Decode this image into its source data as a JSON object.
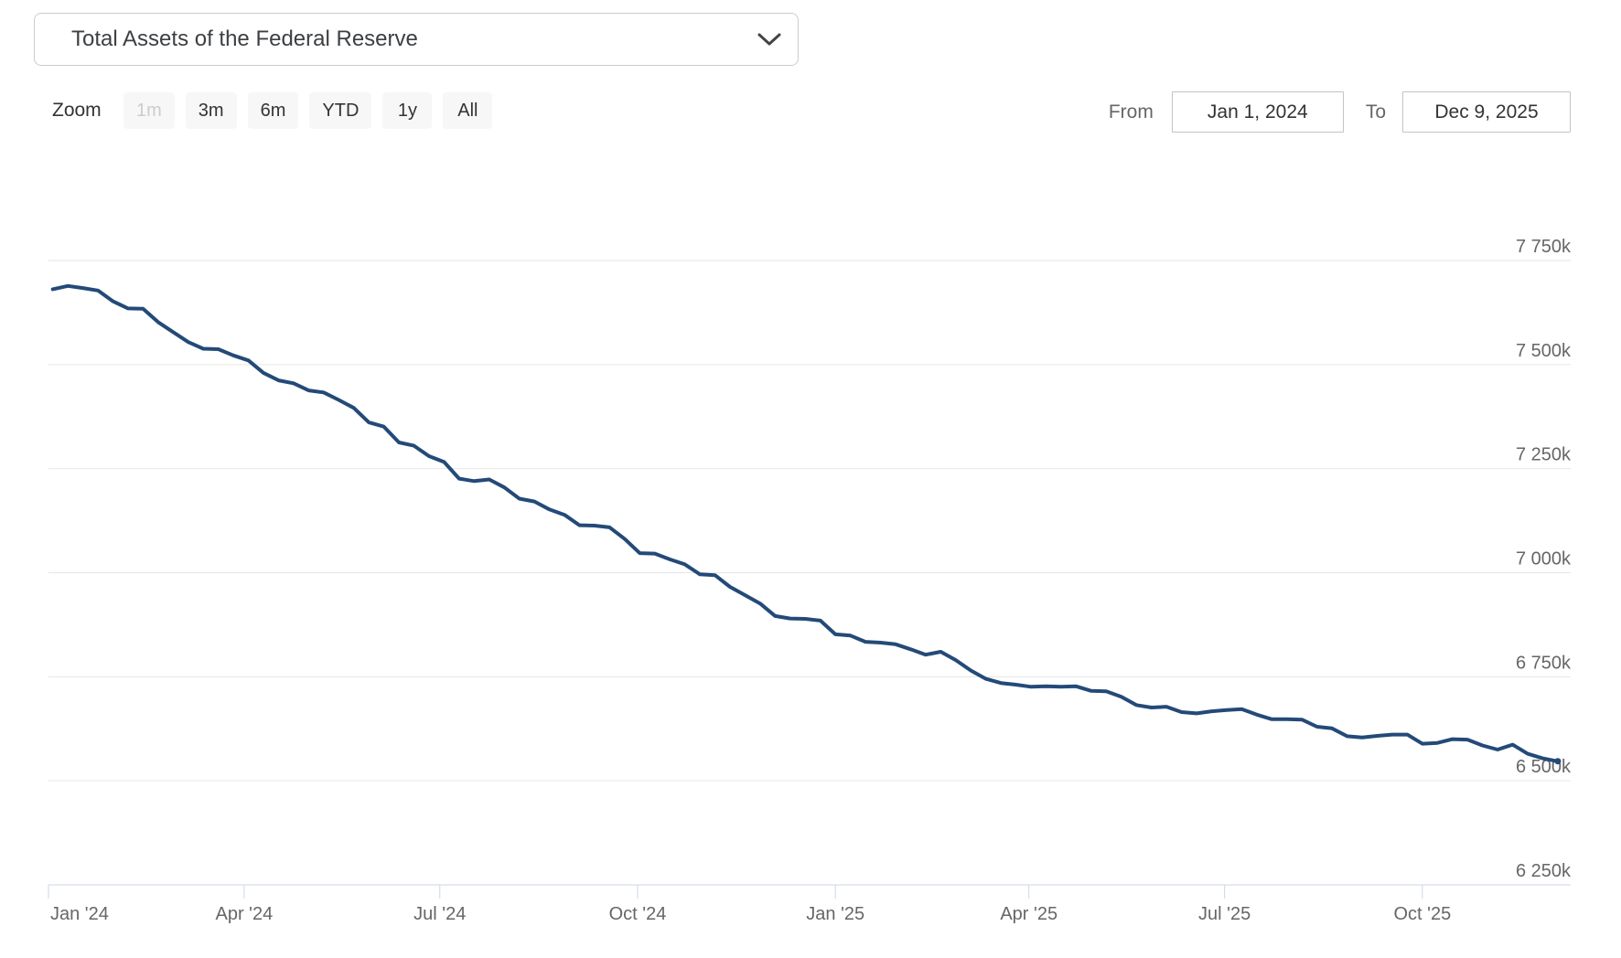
{
  "select": {
    "value": "Total Assets of the Federal Reserve"
  },
  "toolbar": {
    "zoom_label": "Zoom",
    "buttons": [
      {
        "label": "1m",
        "enabled": false
      },
      {
        "label": "3m",
        "enabled": true
      },
      {
        "label": "6m",
        "enabled": true
      },
      {
        "label": "YTD",
        "enabled": true
      },
      {
        "label": "1y",
        "enabled": true
      },
      {
        "label": "All",
        "enabled": true
      }
    ],
    "from_label": "From",
    "from_value": "Jan 1, 2024",
    "to_label": "To",
    "to_value": "Dec 9, 2025"
  },
  "chart_data": {
    "type": "line",
    "title": "Total Assets of the Federal Reserve",
    "unit": "millions of USD; axis labels in thousands (k), e.g. 7 750k = 7,750,000 million",
    "legend": "none",
    "grid": true,
    "colors": {
      "series": "#234a78",
      "grid": "#e6e6e6",
      "axis": "#ccd6eb",
      "tick_text": "#666666"
    },
    "x_range": [
      "2024-01-01",
      "2025-12-09"
    ],
    "ylim": [
      6250,
      7750
    ],
    "y_axis": {
      "position": "right",
      "ticks": [
        {
          "value": 6250,
          "label": "6 250k"
        },
        {
          "value": 6500,
          "label": "6 500k"
        },
        {
          "value": 6750,
          "label": "6 750k"
        },
        {
          "value": 7000,
          "label": "7 000k"
        },
        {
          "value": 7250,
          "label": "7 250k"
        },
        {
          "value": 7500,
          "label": "7 500k"
        },
        {
          "value": 7750,
          "label": "7 750k"
        }
      ]
    },
    "x_axis": {
      "ticks": [
        {
          "date": "2024-01-01",
          "label": "Jan '24"
        },
        {
          "date": "2024-04-01",
          "label": "Apr '24"
        },
        {
          "date": "2024-07-01",
          "label": "Jul '24"
        },
        {
          "date": "2024-10-01",
          "label": "Oct '24"
        },
        {
          "date": "2025-01-01",
          "label": "Jan '25"
        },
        {
          "date": "2025-04-01",
          "label": "Apr '25"
        },
        {
          "date": "2025-07-01",
          "label": "Jul '25"
        },
        {
          "date": "2025-10-01",
          "label": "Oct '25"
        }
      ]
    },
    "dates": [
      "2024-01-03",
      "2024-01-10",
      "2024-01-17",
      "2024-01-24",
      "2024-01-31",
      "2024-02-07",
      "2024-02-14",
      "2024-02-21",
      "2024-02-28",
      "2024-03-06",
      "2024-03-13",
      "2024-03-20",
      "2024-03-27",
      "2024-04-03",
      "2024-04-10",
      "2024-04-17",
      "2024-04-24",
      "2024-05-01",
      "2024-05-08",
      "2024-05-15",
      "2024-05-22",
      "2024-05-29",
      "2024-06-05",
      "2024-06-12",
      "2024-06-19",
      "2024-06-26",
      "2024-07-03",
      "2024-07-10",
      "2024-07-17",
      "2024-07-24",
      "2024-07-31",
      "2024-08-07",
      "2024-08-14",
      "2024-08-21",
      "2024-08-28",
      "2024-09-04",
      "2024-09-11",
      "2024-09-18",
      "2024-09-25",
      "2024-10-02",
      "2024-10-09",
      "2024-10-16",
      "2024-10-23",
      "2024-10-30",
      "2024-11-06",
      "2024-11-13",
      "2024-11-20",
      "2024-11-27",
      "2024-12-04",
      "2024-12-11",
      "2024-12-18",
      "2024-12-25",
      "2025-01-01",
      "2025-01-08",
      "2025-01-15",
      "2025-01-22",
      "2025-01-29",
      "2025-02-05",
      "2025-02-12",
      "2025-02-19",
      "2025-02-26",
      "2025-03-05",
      "2025-03-12",
      "2025-03-19",
      "2025-03-26",
      "2025-04-02",
      "2025-04-09",
      "2025-04-16",
      "2025-04-23",
      "2025-04-30",
      "2025-05-07",
      "2025-05-14",
      "2025-05-21",
      "2025-05-28",
      "2025-06-04",
      "2025-06-11",
      "2025-06-18",
      "2025-06-25",
      "2025-07-02",
      "2025-07-09",
      "2025-07-16",
      "2025-07-23",
      "2025-07-30",
      "2025-08-06",
      "2025-08-13",
      "2025-08-20",
      "2025-08-27",
      "2025-09-03",
      "2025-09-10",
      "2025-09-17",
      "2025-09-24",
      "2025-10-01",
      "2025-10-08",
      "2025-10-15",
      "2025-10-22",
      "2025-10-29",
      "2025-11-05",
      "2025-11-12",
      "2025-11-19",
      "2025-11-26",
      "2025-12-03"
    ],
    "values": [
      7681,
      7689,
      7684,
      7678,
      7652,
      7635,
      7634,
      7602,
      7578,
      7554,
      7538,
      7537,
      7522,
      7510,
      7480,
      7462,
      7455,
      7438,
      7433,
      7415,
      7396,
      7361,
      7351,
      7313,
      7305,
      7280,
      7266,
      7226,
      7220,
      7224,
      7205,
      7178,
      7171,
      7152,
      7139,
      7114,
      7113,
      7109,
      7081,
      7047,
      7046,
      7032,
      7020,
      6996,
      6994,
      6966,
      6946,
      6926,
      6896,
      6890,
      6889,
      6885,
      6852,
      6849,
      6834,
      6832,
      6828,
      6816,
      6803,
      6810,
      6790,
      6765,
      6745,
      6735,
      6731,
      6726,
      6727,
      6726,
      6727,
      6716,
      6715,
      6702,
      6682,
      6676,
      6678,
      6665,
      6662,
      6667,
      6670,
      6672,
      6659,
      6648,
      6648,
      6647,
      6630,
      6626,
      6607,
      6604,
      6608,
      6611,
      6611,
      6589,
      6591,
      6600,
      6599,
      6585,
      6575,
      6587,
      6565,
      6554,
      6547
    ]
  }
}
